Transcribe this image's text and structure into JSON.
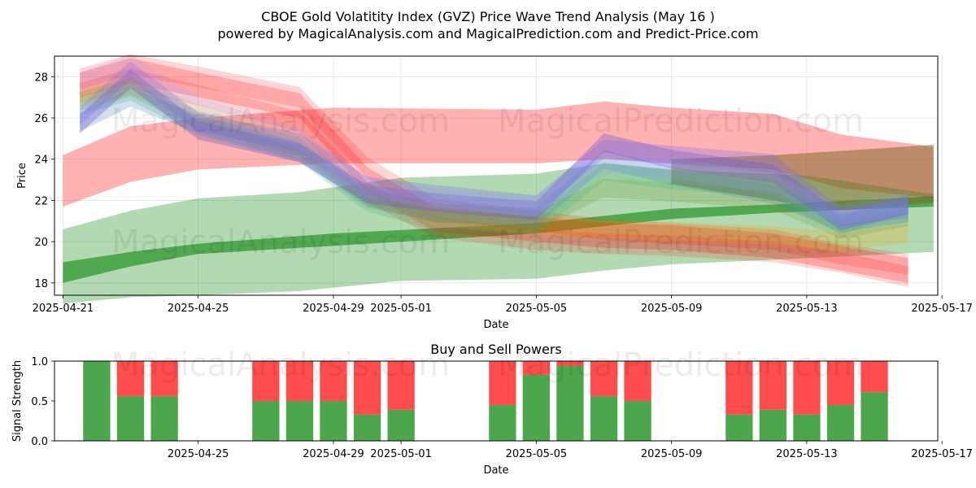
{
  "title": "CBOE Gold Volatitity Index (GVZ) Price Wave Trend Analysis (May 16 )",
  "subtitle": "powered by MagicalAnalysis.com and MagicalPrediction.com and Predict-Price.com",
  "watermarks": [
    "MagicalAnalysis.com",
    "MagicalPrediction.com"
  ],
  "chart_data": [
    {
      "type": "area",
      "title": "",
      "xlabel": "Date",
      "ylabel": "Price",
      "xlim": [
        "2025-04-20T18:00",
        "2025-05-16T21:00"
      ],
      "ylim": [
        17.4,
        29.0
      ],
      "x_ticks": [
        "2025-04-21",
        "2025-04-25",
        "2025-04-29",
        "2025-05-01",
        "2025-05-05",
        "2025-05-09",
        "2025-05-13",
        "2025-05-17"
      ],
      "y_ticks": [
        18,
        20,
        22,
        24,
        26,
        28
      ],
      "grid": true,
      "bands": [
        {
          "name": "red-wide",
          "color": "#ff0000",
          "opacity": 0.3,
          "x": [
            "2025-04-21",
            "2025-04-23",
            "2025-04-25",
            "2025-04-29",
            "2025-05-05",
            "2025-05-07",
            "2025-05-09",
            "2025-05-12",
            "2025-05-14",
            "2025-05-16T18:00"
          ],
          "upper": [
            24.2,
            25.6,
            26.0,
            26.5,
            26.4,
            26.8,
            26.5,
            26.2,
            25.2,
            24.6
          ],
          "lower": [
            21.7,
            22.9,
            23.5,
            23.8,
            23.8,
            24.0,
            23.8,
            23.5,
            22.6,
            22.1
          ]
        },
        {
          "name": "green-wide",
          "color": "#008000",
          "opacity": 0.3,
          "x": [
            "2025-04-21",
            "2025-04-23",
            "2025-04-25",
            "2025-04-28",
            "2025-05-01",
            "2025-05-05",
            "2025-05-07",
            "2025-05-09",
            "2025-05-13",
            "2025-05-16T18:00"
          ],
          "upper": [
            20.6,
            21.5,
            22.1,
            22.4,
            23.1,
            23.3,
            23.8,
            23.5,
            23.2,
            22.3
          ],
          "lower": [
            17.0,
            17.3,
            17.4,
            17.6,
            18.1,
            18.2,
            18.6,
            18.9,
            19.2,
            19.5
          ]
        },
        {
          "name": "green-trend",
          "color": "#008000",
          "opacity": 0.55,
          "x": [
            "2025-04-21",
            "2025-04-23",
            "2025-04-25",
            "2025-04-29",
            "2025-05-05",
            "2025-05-09",
            "2025-05-12",
            "2025-05-16T18:00"
          ],
          "upper": [
            19.0,
            19.5,
            19.9,
            20.4,
            20.9,
            21.6,
            21.8,
            22.2
          ],
          "lower": [
            18.0,
            18.8,
            19.4,
            19.8,
            20.4,
            21.1,
            21.4,
            21.7
          ]
        },
        {
          "name": "olive-trend",
          "color": "#7a6420",
          "opacity": 0.5,
          "x": [
            "2025-05-09",
            "2025-05-12",
            "2025-05-14",
            "2025-05-16T18:00"
          ],
          "upper": [
            24.0,
            24.2,
            24.4,
            24.7
          ],
          "lower": [
            22.8,
            22.0,
            21.5,
            21.9
          ]
        }
      ],
      "waves": [
        {
          "color": "#ff0000",
          "opacity": 0.22,
          "x": [
            "2025-04-21T12:00",
            "2025-04-23",
            "2025-04-25",
            "2025-04-28",
            "2025-04-30",
            "2025-05-02",
            "2025-05-05",
            "2025-05-07",
            "2025-05-09",
            "2025-05-12",
            "2025-05-14",
            "2025-05-16"
          ],
          "y": [
            27.6,
            28.3,
            27.6,
            26.6,
            23.0,
            21.1,
            20.6,
            20.3,
            20.2,
            19.8,
            19.2,
            18.6
          ],
          "width": 1.2
        },
        {
          "color": "#ff0000",
          "opacity": 0.16,
          "x": [
            "2025-04-21T12:00",
            "2025-04-23",
            "2025-04-25",
            "2025-04-28",
            "2025-04-30",
            "2025-05-02",
            "2025-05-05",
            "2025-05-07",
            "2025-05-09",
            "2025-05-12",
            "2025-05-14",
            "2025-05-16"
          ],
          "y": [
            27.9,
            28.6,
            28.0,
            27.0,
            23.6,
            21.6,
            21.0,
            20.6,
            20.4,
            20.1,
            19.4,
            18.9
          ],
          "width": 1.0
        },
        {
          "color": "#ff0000",
          "opacity": 0.16,
          "x": [
            "2025-04-21T12:00",
            "2025-04-23",
            "2025-04-25",
            "2025-04-28",
            "2025-04-30",
            "2025-05-02",
            "2025-05-05",
            "2025-05-07",
            "2025-05-09",
            "2025-05-12",
            "2025-05-14",
            "2025-05-16"
          ],
          "y": [
            27.2,
            27.9,
            27.1,
            25.8,
            22.4,
            20.7,
            20.1,
            19.9,
            19.8,
            19.5,
            19.0,
            18.3
          ],
          "width": 1.0
        },
        {
          "color": "#ffa500",
          "opacity": 0.22,
          "x": [
            "2025-04-21T12:00",
            "2025-04-23",
            "2025-04-25",
            "2025-04-28",
            "2025-04-30",
            "2025-05-02",
            "2025-05-05",
            "2025-05-07",
            "2025-05-09",
            "2025-05-12",
            "2025-05-14",
            "2025-05-16"
          ],
          "y": [
            27.0,
            27.6,
            26.2,
            24.8,
            22.3,
            21.2,
            20.8,
            20.6,
            20.5,
            20.3,
            20.0,
            20.4
          ],
          "width": 0.9
        },
        {
          "color": "#6b8e23",
          "opacity": 0.2,
          "x": [
            "2025-04-21T12:00",
            "2025-04-23",
            "2025-04-25",
            "2025-04-28",
            "2025-04-30",
            "2025-05-02",
            "2025-05-05",
            "2025-05-07",
            "2025-05-09",
            "2025-05-12",
            "2025-05-14",
            "2025-05-16"
          ],
          "y": [
            26.8,
            27.5,
            25.9,
            24.6,
            22.2,
            21.4,
            21.0,
            22.6,
            22.4,
            22.0,
            20.6,
            21.2
          ],
          "width": 0.9
        },
        {
          "color": "#3cb371",
          "opacity": 0.22,
          "x": [
            "2025-04-21T12:00",
            "2025-04-23",
            "2025-04-25",
            "2025-04-28",
            "2025-04-30",
            "2025-05-02",
            "2025-05-05",
            "2025-05-07",
            "2025-05-09",
            "2025-05-12",
            "2025-05-14",
            "2025-05-16"
          ],
          "y": [
            26.6,
            27.3,
            25.6,
            24.3,
            21.9,
            21.0,
            20.8,
            23.4,
            23.0,
            22.6,
            20.8,
            21.8
          ],
          "width": 0.9
        },
        {
          "color": "#4682b4",
          "opacity": 0.25,
          "x": [
            "2025-04-21T12:00",
            "2025-04-23",
            "2025-04-25",
            "2025-04-28",
            "2025-04-30",
            "2025-05-02",
            "2025-05-05",
            "2025-05-07",
            "2025-05-09",
            "2025-05-12",
            "2025-05-14",
            "2025-05-16"
          ],
          "y": [
            25.8,
            27.0,
            25.7,
            24.4,
            22.1,
            21.4,
            21.2,
            24.0,
            23.2,
            22.3,
            20.9,
            21.4
          ],
          "width": 0.9
        },
        {
          "color": "#6a5acd",
          "opacity": 0.35,
          "x": [
            "2025-04-21T12:00",
            "2025-04-23",
            "2025-04-25",
            "2025-04-28",
            "2025-04-30",
            "2025-05-02",
            "2025-05-05",
            "2025-05-07",
            "2025-05-09",
            "2025-05-12",
            "2025-05-14",
            "2025-05-16"
          ],
          "y": [
            25.7,
            27.9,
            25.4,
            24.3,
            22.3,
            21.9,
            21.5,
            24.8,
            24.0,
            23.3,
            21.0,
            21.8
          ],
          "width": 0.9
        },
        {
          "color": "#7b68ee",
          "opacity": 0.28,
          "x": [
            "2025-04-21T12:00",
            "2025-04-23",
            "2025-04-25",
            "2025-04-28",
            "2025-04-30",
            "2025-05-02",
            "2025-05-05",
            "2025-05-07",
            "2025-05-09",
            "2025-05-12",
            "2025-05-14",
            "2025-05-16"
          ],
          "y": [
            26.1,
            28.3,
            25.8,
            24.8,
            22.7,
            22.3,
            21.8,
            24.5,
            24.2,
            23.8,
            21.2,
            21.6
          ],
          "width": 0.9
        },
        {
          "color": "#9999ff",
          "opacity": 0.18,
          "x": [
            "2025-04-21T12:00",
            "2025-04-23",
            "2025-04-25",
            "2025-04-28",
            "2025-04-30",
            "2025-05-02",
            "2025-05-05",
            "2025-05-07",
            "2025-05-09",
            "2025-05-12",
            "2025-05-14",
            "2025-05-16"
          ],
          "y": [
            27.7,
            28.6,
            26.5,
            25.0,
            22.6,
            22.1,
            21.7,
            23.8,
            23.6,
            22.8,
            21.3,
            21.9
          ],
          "width": 1.0
        }
      ]
    },
    {
      "type": "bar",
      "title": "Buy and Sell Powers",
      "xlabel": "Date",
      "ylabel": "Signal Strength",
      "xlim": [
        "2025-04-20T18:00",
        "2025-05-16T21:00"
      ],
      "ylim": [
        0,
        1.0
      ],
      "x_ticks": [
        "2025-04-25",
        "2025-04-29",
        "2025-05-01",
        "2025-05-05",
        "2025-05-09",
        "2025-05-13",
        "2025-05-17"
      ],
      "y_ticks": [
        0.0,
        0.5,
        1.0
      ],
      "buy_color": "#008000",
      "sell_color": "#ff0000",
      "dates": [
        "2025-04-22",
        "2025-04-23",
        "2025-04-24",
        "2025-04-27",
        "2025-04-28",
        "2025-04-29",
        "2025-04-30",
        "2025-05-01",
        "2025-05-04",
        "2025-05-05",
        "2025-05-06",
        "2025-05-07",
        "2025-05-08",
        "2025-05-11",
        "2025-05-12",
        "2025-05-13",
        "2025-05-14",
        "2025-05-15"
      ],
      "buy": [
        1.0,
        0.56,
        0.56,
        0.5,
        0.5,
        0.5,
        0.33,
        0.39,
        0.45,
        0.83,
        0.94,
        0.56,
        0.5,
        0.33,
        0.39,
        0.33,
        0.45,
        0.61
      ]
    }
  ]
}
